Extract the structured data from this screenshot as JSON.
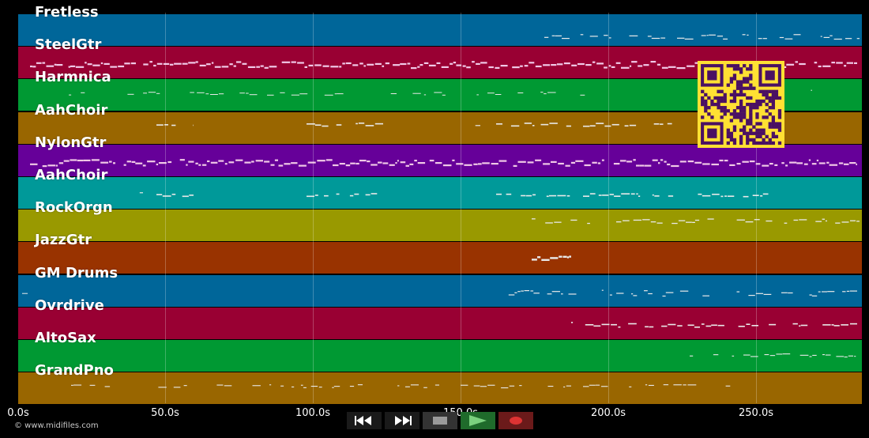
{
  "tracks": [
    {
      "name": "Fretless",
      "color": "#006699"
    },
    {
      "name": "SteelGtr",
      "color": "#990033"
    },
    {
      "name": "Harmnica",
      "color": "#009933"
    },
    {
      "name": "AahChoir",
      "color": "#996600"
    },
    {
      "name": "NylonGtr",
      "color": "#660099"
    },
    {
      "name": "AahChoir",
      "color": "#009999"
    },
    {
      "name": "RockOrgn",
      "color": "#999900"
    },
    {
      "name": "JazzGtr",
      "color": "#993300"
    },
    {
      "name": "GM Drums",
      "color": "#006699"
    },
    {
      "name": "Ovrdrive",
      "color": "#990033"
    },
    {
      "name": "AltoSax",
      "color": "#009933"
    },
    {
      "name": "GrandPno",
      "color": "#996600"
    }
  ],
  "timeline": {
    "ticks": [
      "0.0s",
      "50.0s",
      "100.0s",
      "150.0s",
      "200.0s",
      "250.0s"
    ]
  },
  "transport": {
    "rewind_icon": "rewind-icon",
    "fastforward_icon": "fast-forward-icon",
    "stop_icon": "stop-icon",
    "play_icon": "play-icon",
    "record_icon": "record-icon"
  },
  "footer": {
    "copyright": "© www.midifiles.com"
  }
}
